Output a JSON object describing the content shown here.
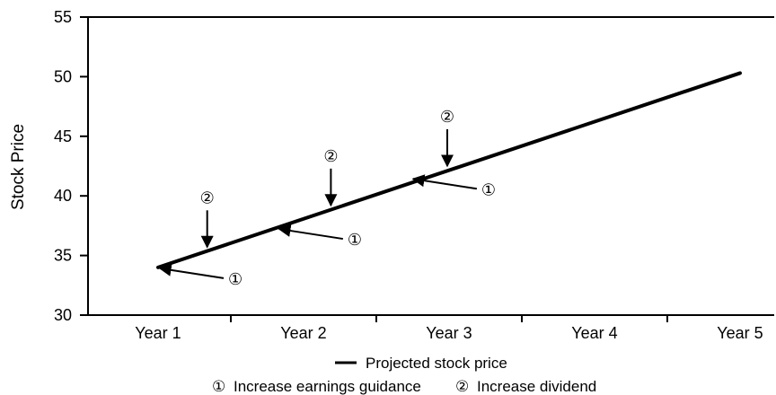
{
  "chart_data": {
    "type": "line",
    "categories": [
      "Year 1",
      "Year 2",
      "Year 3",
      "Year 4",
      "Year 5"
    ],
    "ylabel": "Stock Price",
    "xlabel": "",
    "ylim": [
      30,
      55
    ],
    "yticks": [
      "30",
      "35",
      "40",
      "45",
      "50",
      "55"
    ],
    "grid": false,
    "series": [
      {
        "name": "Projected stock price",
        "color": "#000000",
        "points": [
          {
            "x": 1.0,
            "y": 34.0
          },
          {
            "x": 5.0,
            "y": 50.3
          }
        ]
      }
    ],
    "annotations": [
      {
        "marker": "①",
        "meaning": "Increase earnings guidance",
        "x": 1.0,
        "y": 34.0,
        "direction": "from-right"
      },
      {
        "marker": "②",
        "meaning": "Increase dividend",
        "x": 1.35,
        "y": 35.4,
        "direction": "from-above"
      },
      {
        "marker": "①",
        "meaning": "Increase earnings guidance",
        "x": 1.82,
        "y": 37.3,
        "direction": "from-right"
      },
      {
        "marker": "②",
        "meaning": "Increase dividend",
        "x": 2.2,
        "y": 38.9,
        "direction": "from-above"
      },
      {
        "marker": "①",
        "meaning": "Increase earnings guidance",
        "x": 2.74,
        "y": 41.5,
        "direction": "from-right"
      },
      {
        "marker": "②",
        "meaning": "Increase dividend",
        "x": 3.0,
        "y": 42.2,
        "direction": "from-above"
      }
    ],
    "legend": {
      "placement": "bottom-center",
      "line_label": "Projected stock price",
      "marker_1": "①",
      "marker_1_label": "Increase earnings guidance",
      "marker_2": "②",
      "marker_2_label": "Increase dividend"
    }
  }
}
